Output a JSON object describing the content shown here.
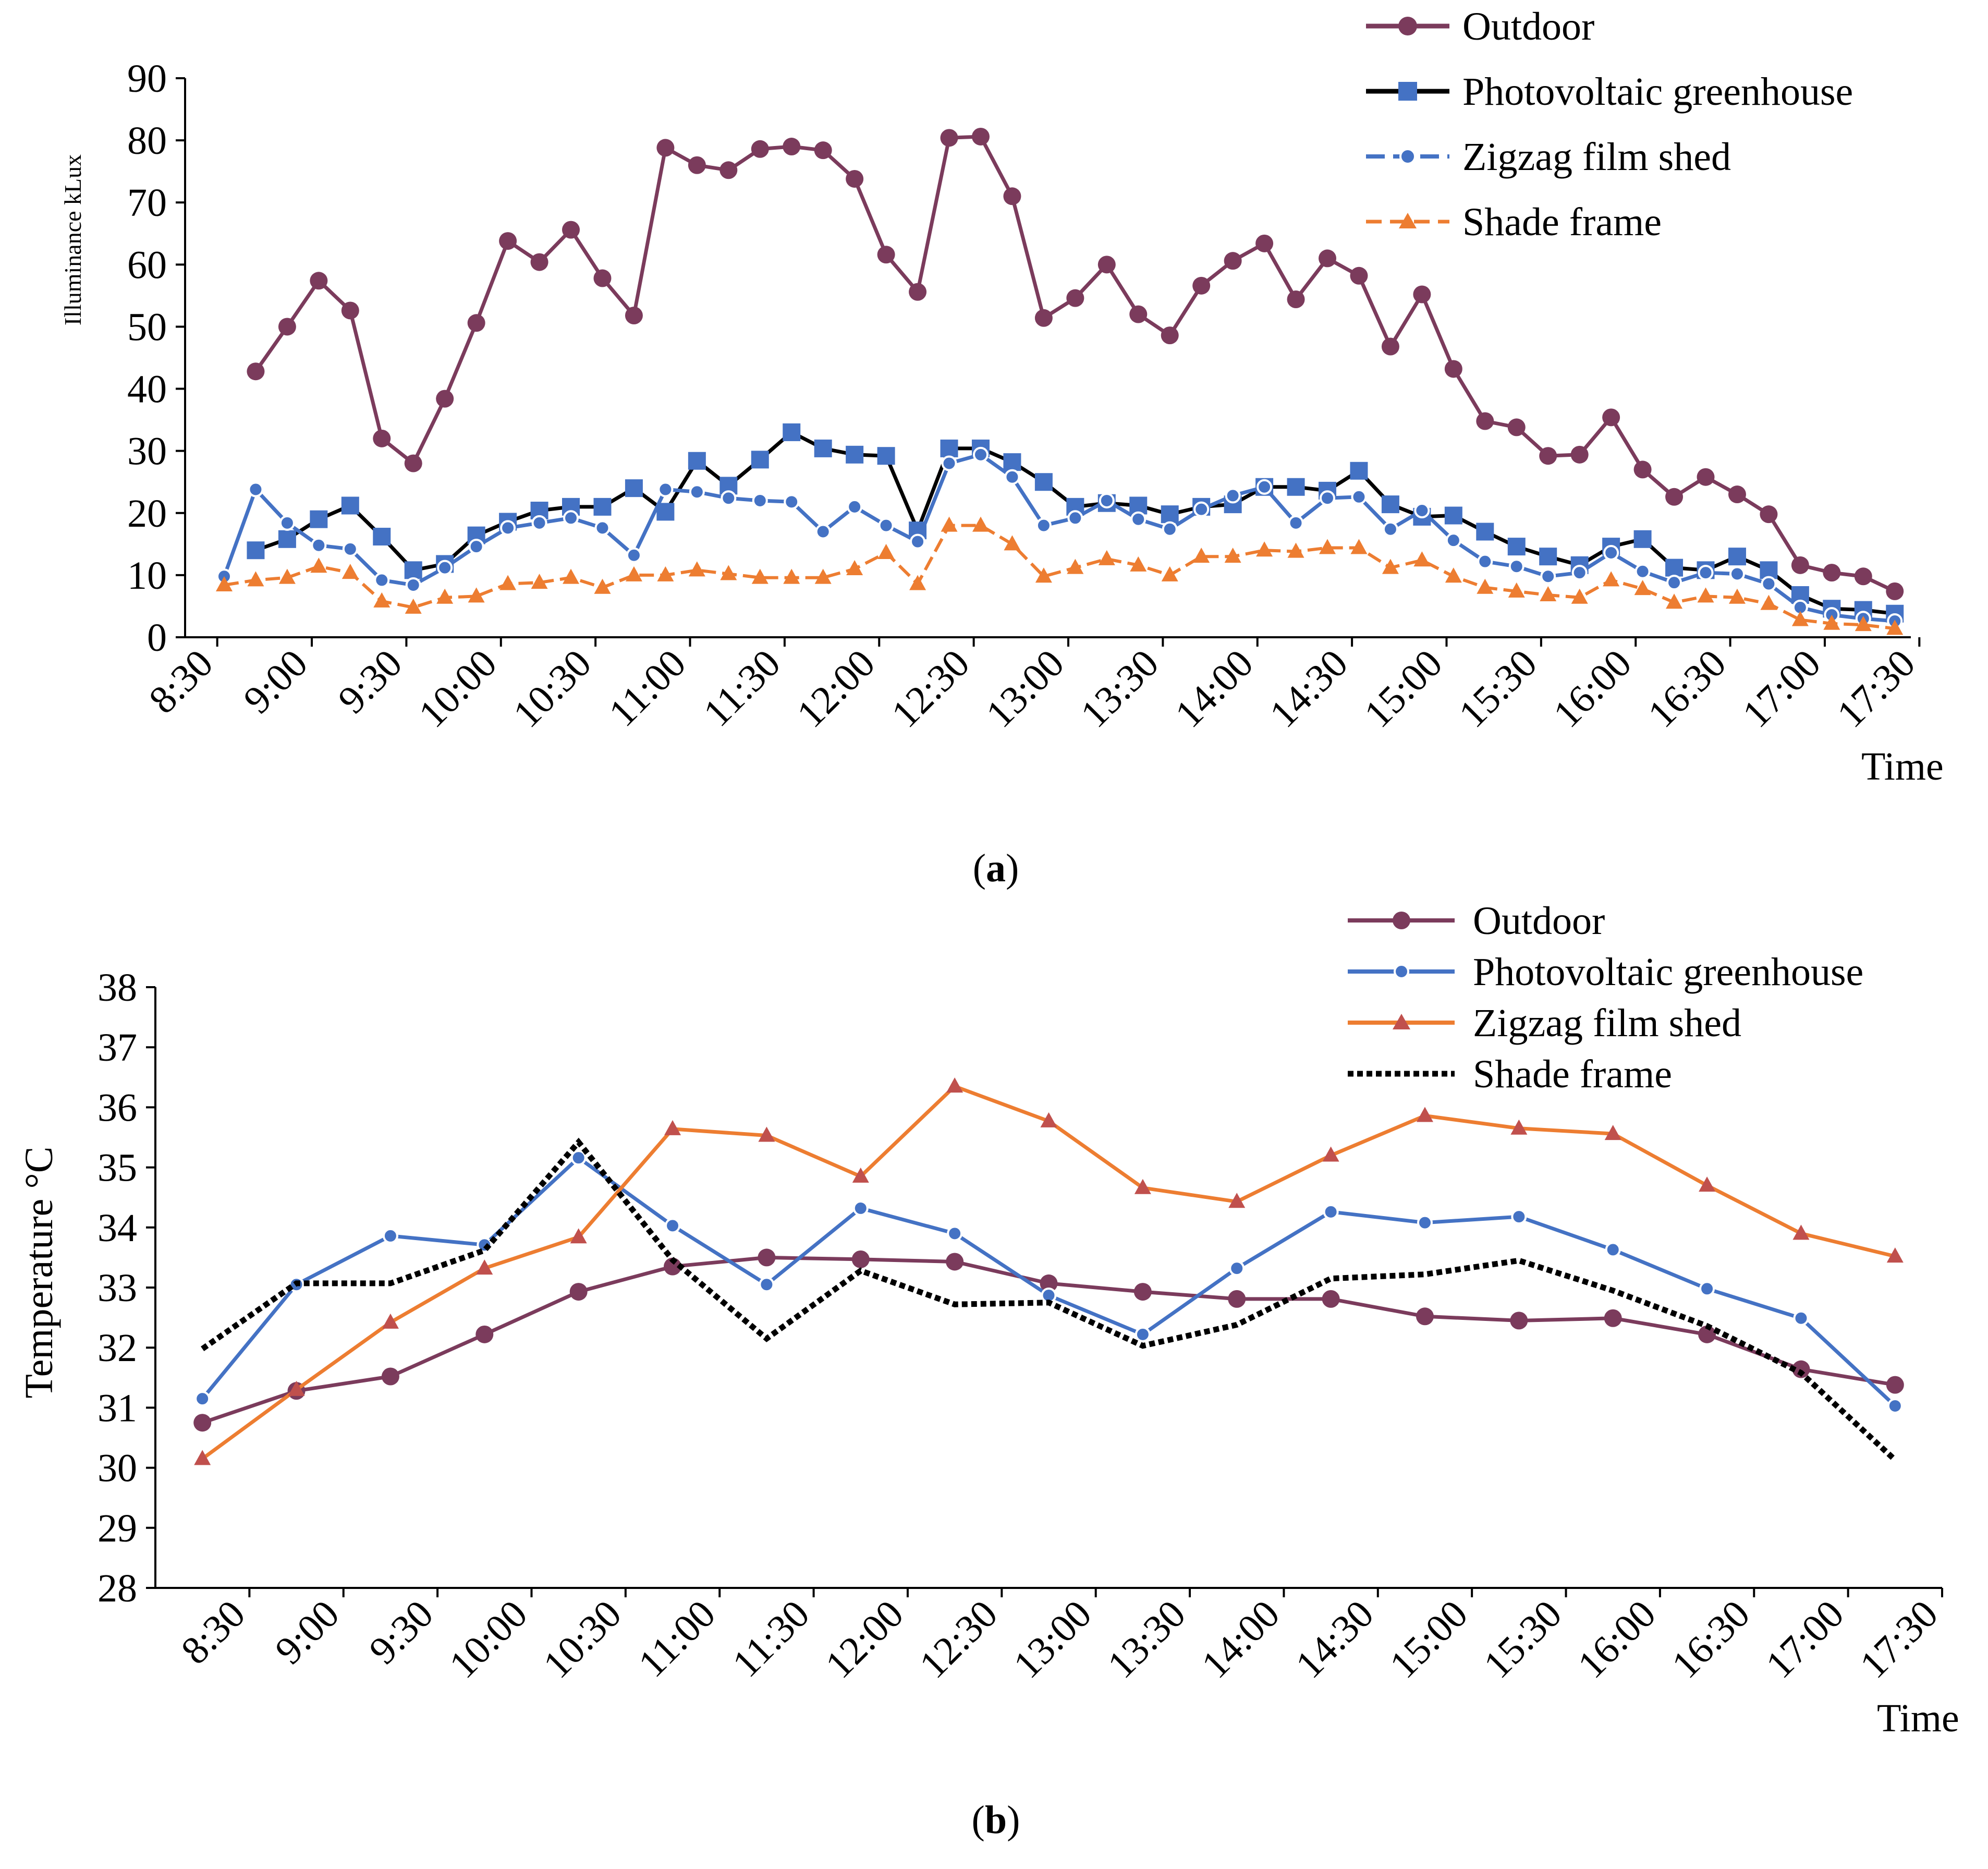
{
  "chart_data": [
    {
      "id": "a",
      "type": "line",
      "caption_open": "(",
      "caption_letter": "a",
      "caption_close": ")",
      "ylabel": "Illuminance  kLux",
      "xlabel": "Time",
      "ylim": [
        0,
        90
      ],
      "yticks": [
        0,
        10,
        20,
        30,
        40,
        50,
        60,
        70,
        80,
        90
      ],
      "xlim": [
        8.5,
        17.625
      ],
      "xticks": [
        "8:30",
        "9:00",
        "9:30",
        "10:00",
        "10:30",
        "11:00",
        "11:30",
        "12:00",
        "12:30",
        "13:00",
        "13:30",
        "14:00",
        "14:30",
        "15:00",
        "15:30",
        "16:00",
        "16:30",
        "17:00",
        "17:30"
      ],
      "legend_position": "top-right",
      "x_start": 8.6667,
      "x_step": 0.16667,
      "series": [
        {
          "name": "Outdoor",
          "color": "#7B3B5C",
          "marker": "circle",
          "values": [
            null,
            42.8,
            50.0,
            57.4,
            52.6,
            32.0,
            28.0,
            38.4,
            50.6,
            63.8,
            60.4,
            65.6,
            57.8,
            51.8,
            78.8,
            76.0,
            75.2,
            78.6,
            79.0,
            78.4,
            73.8,
            61.6,
            55.6,
            80.4,
            80.6,
            71.0,
            51.4,
            54.6,
            60.0,
            52.0,
            48.6,
            56.6,
            60.6,
            63.4,
            54.4,
            61.0,
            58.2,
            46.8,
            55.2,
            43.2,
            34.8,
            33.8,
            29.2,
            29.4,
            35.4,
            27.0,
            22.6,
            25.8,
            23.0,
            19.8,
            11.6,
            10.4,
            9.8,
            7.4
          ]
        },
        {
          "name": "Photovoltaic greenhouse",
          "color": "#000000",
          "marker_color": "#4472C4",
          "marker": "square",
          "values": [
            null,
            14.0,
            15.8,
            19.0,
            21.2,
            16.2,
            10.8,
            11.8,
            16.4,
            18.6,
            20.4,
            21.0,
            21.0,
            24.0,
            20.2,
            28.4,
            24.4,
            28.6,
            33.0,
            30.4,
            29.4,
            29.2,
            17.2,
            30.4,
            30.4,
            28.2,
            25.0,
            21.0,
            21.6,
            21.2,
            19.8,
            21.0,
            21.4,
            24.2,
            24.2,
            23.6,
            26.8,
            21.4,
            19.4,
            19.6,
            17.0,
            14.6,
            13.0,
            11.6,
            14.6,
            15.8,
            11.2,
            10.8,
            13.0,
            10.8,
            6.8,
            4.6,
            4.4,
            3.8
          ]
        },
        {
          "name": "Zigzag film shed",
          "color": "#4472C4",
          "marker": "circle-small",
          "values": [
            9.8,
            23.8,
            18.4,
            14.8,
            14.2,
            9.2,
            8.4,
            11.2,
            14.6,
            17.6,
            18.4,
            19.2,
            17.6,
            13.2,
            23.8,
            23.4,
            22.4,
            22.0,
            21.8,
            17.0,
            21.0,
            18.0,
            15.4,
            28.0,
            29.4,
            25.8,
            18.0,
            19.2,
            22.0,
            19.0,
            17.4,
            20.6,
            22.8,
            24.2,
            18.4,
            22.4,
            22.6,
            17.4,
            20.4,
            15.6,
            12.2,
            11.4,
            9.8,
            10.4,
            13.6,
            10.6,
            8.8,
            10.4,
            10.2,
            8.6,
            4.8,
            3.6,
            3.0,
            2.6
          ]
        },
        {
          "name": "Shade frame",
          "color": "#ED7D31",
          "marker": "triangle",
          "dashed": true,
          "values": [
            8.4,
            9.2,
            9.6,
            11.4,
            10.4,
            5.8,
            4.8,
            6.4,
            6.6,
            8.6,
            8.8,
            9.6,
            8.0,
            10.0,
            10.0,
            10.8,
            10.2,
            9.6,
            9.6,
            9.6,
            11.0,
            13.6,
            8.6,
            18.0,
            18.0,
            15.0,
            9.8,
            11.2,
            12.6,
            11.6,
            10.0,
            13.0,
            13.0,
            14.0,
            13.8,
            14.4,
            14.4,
            11.2,
            12.4,
            9.8,
            8.0,
            7.4,
            6.8,
            6.4,
            9.2,
            7.8,
            5.6,
            6.6,
            6.4,
            5.4,
            2.8,
            2.2,
            2.0,
            1.4
          ]
        }
      ]
    },
    {
      "id": "b",
      "type": "line",
      "caption_open": "(",
      "caption_letter": "b",
      "caption_close": ")",
      "ylabel": "Temperature °C",
      "xlabel": "Time",
      "ylim": [
        28,
        38
      ],
      "yticks": [
        28,
        29,
        30,
        31,
        32,
        33,
        34,
        35,
        36,
        37,
        38
      ],
      "xticks": [
        "8:30",
        "9:00",
        "9:30",
        "10:00",
        "10:30",
        "11:00",
        "11:30",
        "12:00",
        "12:30",
        "13:00",
        "13:30",
        "14:00",
        "14:30",
        "15:00",
        "15:30",
        "16:00",
        "16:30",
        "17:00",
        "17:30"
      ],
      "legend_position": "top-right",
      "series": [
        {
          "name": "Outdoor",
          "color": "#7B3B5C",
          "marker": "circle",
          "values": [
            30.75,
            31.28,
            31.52,
            32.22,
            32.93,
            33.35,
            33.5,
            33.47,
            33.43,
            33.07,
            32.93,
            32.81,
            32.81,
            32.52,
            32.45,
            32.49,
            32.22,
            31.64,
            31.38
          ]
        },
        {
          "name": "Photovoltaic greenhouse",
          "color": "#4472C4",
          "marker": "circle-small",
          "values": [
            31.15,
            33.05,
            33.86,
            33.71,
            35.16,
            34.03,
            33.05,
            34.32,
            33.9,
            32.87,
            32.22,
            33.32,
            34.26,
            34.08,
            34.18,
            33.63,
            32.98,
            32.49,
            31.03
          ]
        },
        {
          "name": "Zigzag film shed",
          "color": "#ED7D31",
          "marker": "triangle",
          "values": [
            30.15,
            31.3,
            32.42,
            33.32,
            33.84,
            35.64,
            35.53,
            34.85,
            36.35,
            35.77,
            34.66,
            34.43,
            35.2,
            35.86,
            35.65,
            35.56,
            34.7,
            33.9,
            33.52
          ]
        },
        {
          "name": "Shade frame",
          "color": "#000000",
          "marker": "none",
          "dotted": true,
          "values": [
            31.98,
            33.07,
            33.07,
            33.62,
            35.42,
            33.46,
            32.15,
            33.28,
            32.72,
            32.75,
            32.03,
            32.38,
            33.15,
            33.22,
            33.45,
            32.95,
            32.36,
            31.58,
            30.13
          ]
        }
      ]
    }
  ]
}
